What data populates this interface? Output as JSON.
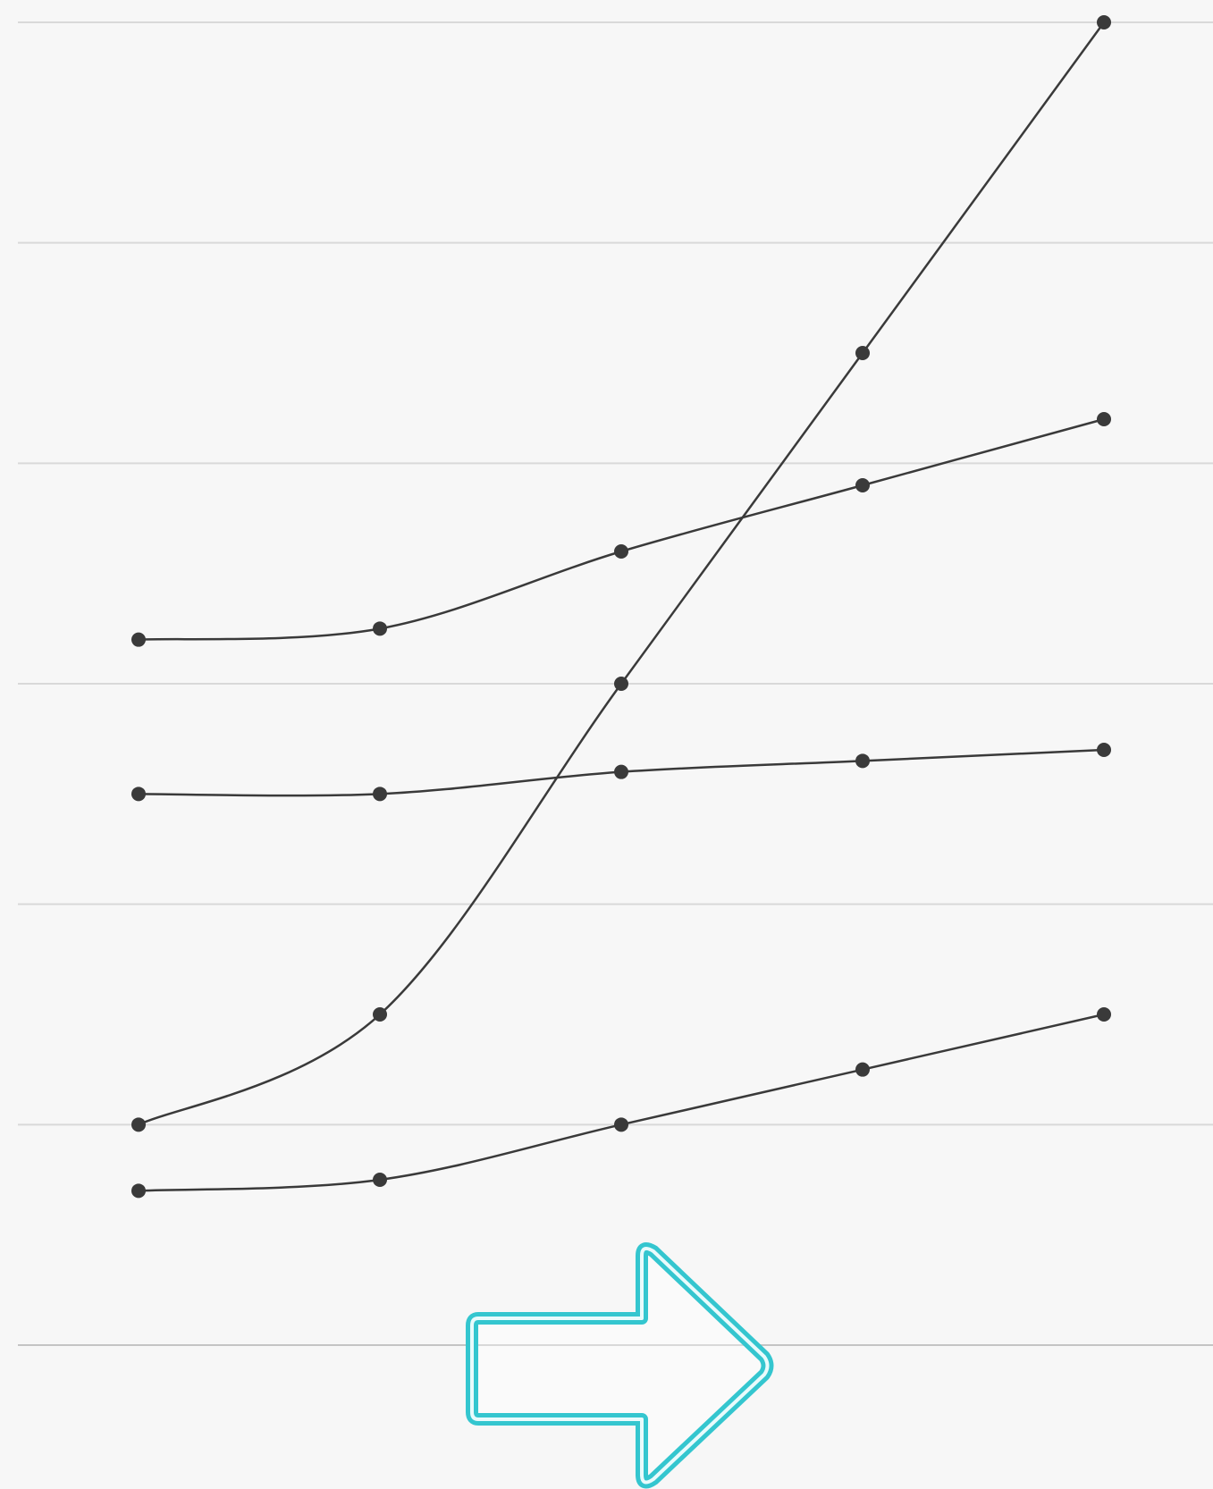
{
  "chart_data": {
    "type": "line",
    "title": "",
    "xlabel": "",
    "ylabel": "",
    "x": [
      1,
      2,
      3,
      4,
      5
    ],
    "ylim": [
      0,
      6
    ],
    "grid": true,
    "legend": "none",
    "series": [
      {
        "values": [
          3.2,
          3.25,
          3.6,
          3.9,
          4.2
        ]
      },
      {
        "values": [
          2.5,
          2.5,
          2.6,
          2.65,
          2.7
        ]
      },
      {
        "values": [
          1.0,
          1.5,
          3.0,
          4.5,
          6.0
        ]
      },
      {
        "values": [
          0.7,
          0.75,
          1.0,
          1.25,
          1.5
        ]
      }
    ],
    "colors": {
      "background": "#f7f7f7",
      "grid": "#d9d9d9",
      "line": "#3a3a3a",
      "arrow_stroke": "#34c6cf",
      "arrow_fill": "#ffffff"
    }
  },
  "overlay": {
    "icon": "arrow-right-icon",
    "direction": "right"
  }
}
